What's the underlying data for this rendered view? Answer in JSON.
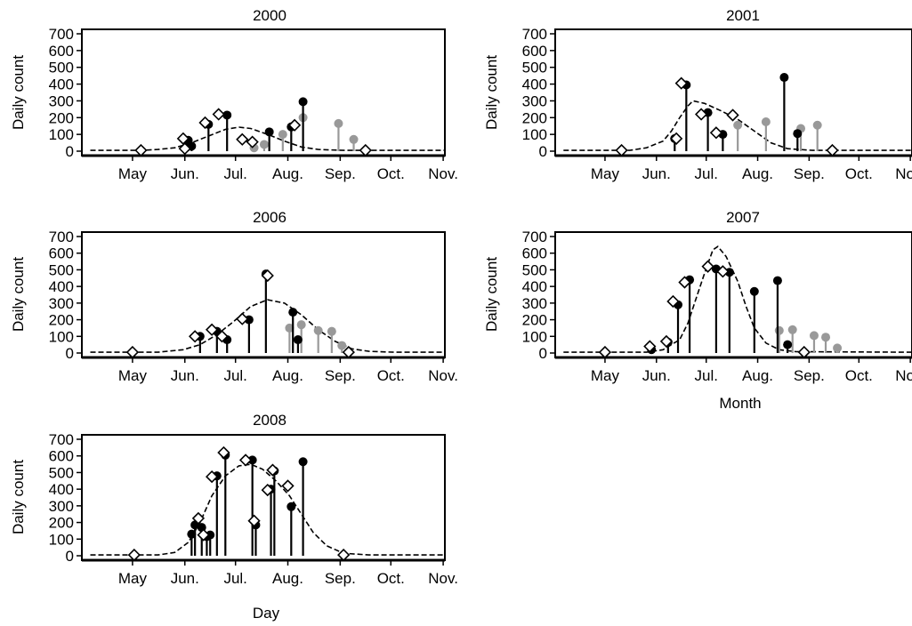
{
  "figure": {
    "x_label_panel4": "Month",
    "x_label_panel5": "Day"
  },
  "chart_data": [
    {
      "type": "scatter",
      "title": "2000",
      "ylabel": "Daily count",
      "xlabel": "",
      "ylim": [
        0,
        700
      ],
      "yticks": [
        0,
        100,
        200,
        300,
        400,
        500,
        600,
        700
      ],
      "months": [
        "May",
        "Jun.",
        "Jul.",
        "Aug.",
        "Sep.",
        "Oct.",
        "Nov."
      ],
      "xlim_days": [
        -15,
        200
      ],
      "curve": [
        [
          -10,
          5
        ],
        [
          20,
          5
        ],
        [
          30,
          10
        ],
        [
          40,
          20
        ],
        [
          50,
          50
        ],
        [
          60,
          90
        ],
        [
          70,
          130
        ],
        [
          78,
          143
        ],
        [
          85,
          135
        ],
        [
          95,
          100
        ],
        [
          105,
          60
        ],
        [
          115,
          25
        ],
        [
          125,
          10
        ],
        [
          140,
          5
        ],
        [
          200,
          5
        ]
      ],
      "diamonds": [
        [
          20,
          5
        ],
        [
          45,
          75
        ],
        [
          46,
          15
        ],
        [
          58,
          170
        ],
        [
          66,
          220
        ],
        [
          80,
          70
        ],
        [
          86,
          55
        ],
        [
          111,
          155
        ],
        [
          153,
          5
        ]
      ],
      "black": [
        [
          48,
          65
        ],
        [
          50,
          30
        ],
        [
          60,
          160
        ],
        [
          71,
          215
        ],
        [
          96,
          115
        ],
        [
          109,
          145
        ],
        [
          116,
          295
        ]
      ],
      "gray": [
        [
          87,
          20
        ],
        [
          93,
          40
        ],
        [
          104,
          100
        ],
        [
          116,
          200
        ],
        [
          137,
          165
        ],
        [
          146,
          70
        ]
      ]
    },
    {
      "type": "scatter",
      "title": "2001",
      "ylabel": "Daily count",
      "xlabel": "",
      "ylim": [
        0,
        700
      ],
      "yticks": [
        0,
        100,
        200,
        300,
        400,
        500,
        600,
        700
      ],
      "months": [
        "May",
        "Jun.",
        "Jul.",
        "Aug.",
        "Sep.",
        "Oct.",
        "Nov."
      ],
      "xlim_days": [
        -15,
        200
      ],
      "curve": [
        [
          -10,
          5
        ],
        [
          30,
          5
        ],
        [
          40,
          20
        ],
        [
          50,
          60
        ],
        [
          55,
          120
        ],
        [
          60,
          200
        ],
        [
          65,
          270
        ],
        [
          68,
          300
        ],
        [
          75,
          285
        ],
        [
          85,
          240
        ],
        [
          95,
          190
        ],
        [
          105,
          120
        ],
        [
          115,
          50
        ],
        [
          125,
          15
        ],
        [
          140,
          5
        ],
        [
          200,
          5
        ]
      ],
      "diamonds": [
        [
          25,
          5
        ],
        [
          58,
          75
        ],
        [
          61,
          405
        ],
        [
          73,
          220
        ],
        [
          82,
          110
        ],
        [
          92,
          215
        ],
        [
          152,
          5
        ]
      ],
      "black": [
        [
          57,
          75
        ],
        [
          64,
          395
        ],
        [
          77,
          230
        ],
        [
          86,
          100
        ],
        [
          123,
          440
        ],
        [
          131,
          105
        ]
      ],
      "gray": [
        [
          95,
          155
        ],
        [
          112,
          175
        ],
        [
          133,
          135
        ],
        [
          143,
          155
        ]
      ]
    },
    {
      "type": "scatter",
      "title": "2006",
      "ylabel": "Daily count",
      "xlabel": "",
      "ylim": [
        0,
        700
      ],
      "yticks": [
        0,
        100,
        200,
        300,
        400,
        500,
        600,
        700
      ],
      "months": [
        "May",
        "Jun.",
        "Jul.",
        "Aug.",
        "Sep.",
        "Oct.",
        "Nov."
      ],
      "xlim_days": [
        -15,
        200
      ],
      "curve": [
        [
          -10,
          5
        ],
        [
          30,
          5
        ],
        [
          45,
          20
        ],
        [
          55,
          50
        ],
        [
          65,
          110
        ],
        [
          75,
          190
        ],
        [
          85,
          280
        ],
        [
          95,
          320
        ],
        [
          105,
          300
        ],
        [
          115,
          230
        ],
        [
          125,
          140
        ],
        [
          135,
          70
        ],
        [
          145,
          25
        ],
        [
          155,
          10
        ],
        [
          170,
          5
        ],
        [
          200,
          5
        ]
      ],
      "diamonds": [
        [
          15,
          5
        ],
        [
          52,
          100
        ],
        [
          62,
          140
        ],
        [
          68,
          100
        ],
        [
          80,
          205
        ],
        [
          95,
          465
        ],
        [
          143,
          5
        ]
      ],
      "black": [
        [
          55,
          100
        ],
        [
          65,
          130
        ],
        [
          71,
          80
        ],
        [
          84,
          200
        ],
        [
          94,
          475
        ],
        [
          110,
          245
        ],
        [
          113,
          80
        ]
      ],
      "gray": [
        [
          108,
          150
        ],
        [
          115,
          170
        ],
        [
          125,
          135
        ],
        [
          133,
          130
        ],
        [
          139,
          45
        ]
      ]
    },
    {
      "type": "scatter",
      "title": "2007",
      "ylabel": "Daily count",
      "xlabel": "Month",
      "ylim": [
        0,
        700
      ],
      "yticks": [
        0,
        100,
        200,
        300,
        400,
        500,
        600,
        700
      ],
      "months": [
        "May",
        "Jun.",
        "Jul.",
        "Aug.",
        "Sep.",
        "Oct.",
        "Nov."
      ],
      "xlim_days": [
        -15,
        200
      ],
      "curve": [
        [
          -10,
          5
        ],
        [
          40,
          5
        ],
        [
          50,
          20
        ],
        [
          60,
          80
        ],
        [
          65,
          180
        ],
        [
          70,
          330
        ],
        [
          75,
          480
        ],
        [
          80,
          620
        ],
        [
          83,
          640
        ],
        [
          88,
          580
        ],
        [
          95,
          430
        ],
        [
          100,
          280
        ],
        [
          105,
          150
        ],
        [
          112,
          60
        ],
        [
          120,
          20
        ],
        [
          130,
          8
        ],
        [
          200,
          5
        ]
      ],
      "diamonds": [
        [
          15,
          5
        ],
        [
          42,
          40
        ],
        [
          52,
          70
        ],
        [
          56,
          310
        ],
        [
          63,
          425
        ],
        [
          77,
          520
        ],
        [
          86,
          490
        ],
        [
          135,
          5
        ]
      ],
      "black": [
        [
          43,
          20
        ],
        [
          53,
          65
        ],
        [
          59,
          290
        ],
        [
          66,
          440
        ],
        [
          82,
          505
        ],
        [
          90,
          485
        ],
        [
          105,
          370
        ],
        [
          119,
          435
        ],
        [
          125,
          50
        ]
      ],
      "gray": [
        [
          120,
          135
        ],
        [
          128,
          140
        ],
        [
          141,
          105
        ],
        [
          148,
          95
        ],
        [
          155,
          30
        ]
      ]
    },
    {
      "type": "scatter",
      "title": "2008",
      "ylabel": "Daily count",
      "xlabel": "Day",
      "ylim": [
        0,
        700
      ],
      "yticks": [
        0,
        100,
        200,
        300,
        400,
        500,
        600,
        700
      ],
      "months": [
        "May",
        "Jun.",
        "Jul.",
        "Aug.",
        "Sep.",
        "Oct.",
        "Nov."
      ],
      "xlim_days": [
        -15,
        200
      ],
      "curve": [
        [
          -10,
          5
        ],
        [
          30,
          5
        ],
        [
          40,
          20
        ],
        [
          48,
          80
        ],
        [
          55,
          200
        ],
        [
          62,
          360
        ],
        [
          70,
          480
        ],
        [
          78,
          540
        ],
        [
          85,
          550
        ],
        [
          92,
          520
        ],
        [
          100,
          450
        ],
        [
          108,
          360
        ],
        [
          115,
          250
        ],
        [
          122,
          140
        ],
        [
          130,
          60
        ],
        [
          140,
          15
        ],
        [
          155,
          5
        ],
        [
          200,
          5
        ]
      ],
      "diamonds": [
        [
          16,
          5
        ],
        [
          54,
          225
        ],
        [
          57,
          125
        ],
        [
          62,
          475
        ],
        [
          69,
          620
        ],
        [
          82,
          575
        ],
        [
          87,
          210
        ],
        [
          95,
          395
        ],
        [
          98,
          515
        ],
        [
          107,
          420
        ],
        [
          140,
          5
        ]
      ],
      "black": [
        [
          50,
          130
        ],
        [
          52,
          185
        ],
        [
          56,
          170
        ],
        [
          59,
          115
        ],
        [
          61,
          125
        ],
        [
          65,
          480
        ],
        [
          70,
          605
        ],
        [
          86,
          575
        ],
        [
          88,
          185
        ],
        [
          97,
          400
        ],
        [
          99,
          510
        ],
        [
          109,
          295
        ],
        [
          116,
          565
        ]
      ],
      "gray": []
    }
  ]
}
